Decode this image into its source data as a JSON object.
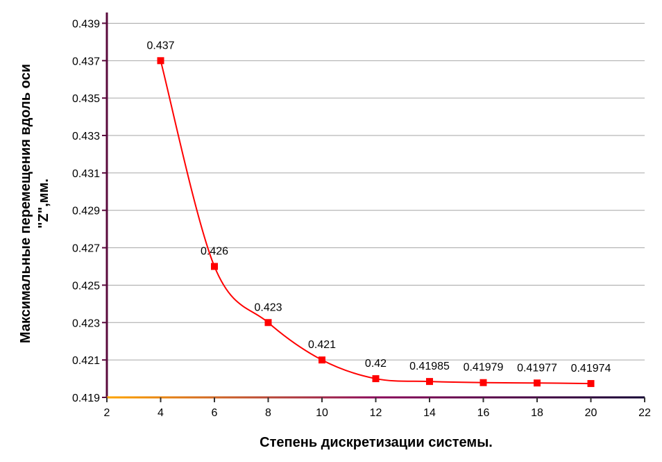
{
  "chart_data": {
    "type": "line",
    "title": "",
    "xlabel": "Степень дискретизации системы.",
    "ylabel_line1": "Максимальные перемещения вдоль оси",
    "ylabel_line2": "\"Z\",мм.",
    "xlim": [
      2,
      22
    ],
    "ylim": [
      0.419,
      0.4395
    ],
    "x_ticks": [
      2,
      4,
      6,
      8,
      10,
      12,
      14,
      16,
      18,
      20,
      22
    ],
    "y_ticks": [
      0.419,
      0.421,
      0.423,
      0.425,
      0.427,
      0.429,
      0.431,
      0.433,
      0.435,
      0.437,
      0.439
    ],
    "x_tick_labels": [
      "2",
      "4",
      "6",
      "8",
      "10",
      "12",
      "14",
      "16",
      "18",
      "20",
      "22"
    ],
    "y_tick_labels": [
      "0.419",
      "0.421",
      "0.423",
      "0.425",
      "0.427",
      "0.429",
      "0.431",
      "0.433",
      "0.435",
      "0.437",
      "0.439"
    ],
    "grid": "horizontal",
    "series": [
      {
        "color": "#ff0000",
        "marker": "square",
        "smooth": true,
        "x": [
          4,
          6,
          8,
          10,
          12,
          14,
          16,
          18,
          20
        ],
        "y": [
          0.437,
          0.426,
          0.423,
          0.421,
          0.42,
          0.41985,
          0.41979,
          0.41977,
          0.41974
        ],
        "labels": [
          "0.437",
          "0.426",
          "0.423",
          "0.421",
          "0.42",
          "0.41985",
          "0.41979",
          "0.41977",
          "0.41974"
        ]
      }
    ],
    "colors": {
      "grid": "#a6a6a6",
      "y_axis": "#5a0a3c",
      "x_axis_gradient": [
        "#ffa500",
        "#8b0a5a",
        "#140033"
      ]
    }
  }
}
